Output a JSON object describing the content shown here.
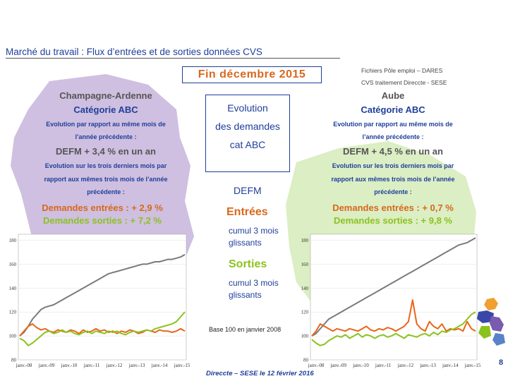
{
  "header": {
    "title": "Marché du travail : Flux d’entrées et de sorties données CVS",
    "source_line1": "Fichiers Pôle emploi – DARES",
    "source_line2": "CVS traitement Direccte - SESE",
    "period": "Fin  décembre  2015"
  },
  "center_panel": {
    "line1": "Evolution",
    "line2": "des  demandes",
    "line3": "cat ABC",
    "defm": "DEFM",
    "entrees": "Entrées",
    "entrees_sub1": "cumul 3 mois",
    "entrees_sub2": "glissants",
    "sorties": "Sorties",
    "sorties_sub1": "cumul 3 mois",
    "sorties_sub2": "glissants",
    "base": "Base 100 en janvier 2008"
  },
  "left_region": {
    "name": "Champagne-Ardenne",
    "category": "Catégorie ABC",
    "evo_line1": "Evolution par rapport au même mois de",
    "evo_line2": "l’année précédente :",
    "defm_year": "DEFM +  3,4 % en un an",
    "evo3_line1": "Evolution sur les trois derniers mois par",
    "evo3_line2": "rapport aux mêmes trois mois de l’année",
    "evo3_line3": "précédente :",
    "entrees": "Demandes entrées : +  2,9 %",
    "sorties": "Demandes sorties : +  7,2 %"
  },
  "right_region": {
    "name": "Aube",
    "category": "Catégorie ABC",
    "evo_line1": "Evolution par rapport au même mois de",
    "evo_line2": "l’année précédente :",
    "defm_year": "DEFM +  4,5 % en un an",
    "evo3_line1": "Evolution sur les trois derniers mois par",
    "evo3_line2": "rapport aux mêmes trois mois de l’année",
    "evo3_line3": "précédente :",
    "entrees": "Demandes entrées : +  0,7 %",
    "sorties": "Demandes sorties : +  9,8 %"
  },
  "footer": {
    "credit": "Direccte – SESE le 12 février 2016",
    "page": "8"
  },
  "colors": {
    "defm": "#7a7a7a",
    "entrees": "#e8661a",
    "sorties": "#8cc21e",
    "blue": "#1f3f9a",
    "map_bg_left": "#cfbfe0",
    "map_bg_right": "#dbeec4"
  },
  "chart_data": [
    {
      "type": "line",
      "region": "Champagne-Ardenne",
      "x_ticks": [
        "janv.-08",
        "janv.-09",
        "janv.-10",
        "janv.-11",
        "janv.-12",
        "janv.-13",
        "janv.-14",
        "janv.-15"
      ],
      "y_ticks": [
        80,
        100,
        120,
        140,
        160,
        180
      ],
      "ylim": [
        80,
        185
      ],
      "series": [
        {
          "name": "DEFM",
          "values": [
            100,
            103,
            108,
            114,
            118,
            122,
            124,
            125,
            126,
            128,
            130,
            132,
            134,
            136,
            138,
            140,
            142,
            144,
            146,
            148,
            150,
            152,
            153,
            154,
            155,
            156,
            157,
            158,
            159,
            160,
            160,
            161,
            162,
            162,
            163,
            164,
            164,
            165,
            166,
            168
          ]
        },
        {
          "name": "Entrées",
          "values": [
            100,
            104,
            108,
            110,
            107,
            105,
            106,
            104,
            103,
            105,
            104,
            103,
            105,
            104,
            102,
            105,
            103,
            104,
            106,
            104,
            105,
            103,
            104,
            102,
            104,
            103,
            105,
            104,
            102,
            103,
            105,
            104,
            103,
            105,
            104,
            104,
            103,
            104,
            106,
            104
          ]
        },
        {
          "name": "Sorties",
          "values": [
            98,
            96,
            92,
            94,
            97,
            100,
            103,
            104,
            102,
            103,
            105,
            103,
            104,
            102,
            101,
            103,
            104,
            102,
            104,
            103,
            102,
            104,
            103,
            104,
            102,
            101,
            103,
            104,
            103,
            104,
            105,
            104,
            106,
            107,
            108,
            109,
            110,
            112,
            116,
            120
          ]
        }
      ]
    },
    {
      "type": "line",
      "region": "Aube",
      "x_ticks": [
        "janv.-08",
        "janv.-09",
        "janv.-10",
        "janv.-11",
        "janv.-12",
        "janv.-13",
        "janv.-14",
        "janv.-15"
      ],
      "y_ticks": [
        80,
        100,
        120,
        140,
        160,
        180
      ],
      "ylim": [
        80,
        185
      ],
      "series": [
        {
          "name": "DEFM",
          "values": [
            100,
            102,
            106,
            110,
            114,
            116,
            118,
            120,
            122,
            124,
            126,
            128,
            130,
            132,
            134,
            136,
            138,
            140,
            142,
            144,
            146,
            148,
            150,
            152,
            154,
            156,
            158,
            160,
            162,
            164,
            166,
            168,
            170,
            172,
            174,
            176,
            177,
            178,
            180,
            182
          ]
        },
        {
          "name": "Entrées",
          "values": [
            100,
            104,
            110,
            108,
            106,
            104,
            106,
            105,
            104,
            106,
            105,
            104,
            106,
            108,
            105,
            104,
            106,
            105,
            107,
            106,
            104,
            106,
            108,
            112,
            130,
            110,
            106,
            104,
            112,
            108,
            106,
            110,
            104,
            106,
            105,
            106,
            104,
            112,
            106,
            104
          ]
        },
        {
          "name": "Sorties",
          "values": [
            97,
            94,
            92,
            93,
            96,
            98,
            100,
            99,
            101,
            98,
            100,
            102,
            99,
            101,
            100,
            98,
            100,
            101,
            99,
            100,
            102,
            100,
            98,
            101,
            100,
            99,
            101,
            102,
            100,
            103,
            101,
            104,
            103,
            105,
            106,
            108,
            110,
            114,
            118,
            120
          ]
        }
      ]
    }
  ]
}
